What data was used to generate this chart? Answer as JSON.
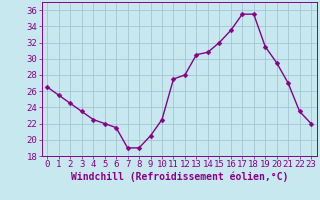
{
  "x": [
    0,
    1,
    2,
    3,
    4,
    5,
    6,
    7,
    8,
    9,
    10,
    11,
    12,
    13,
    14,
    15,
    16,
    17,
    18,
    19,
    20,
    21,
    22,
    23
  ],
  "y": [
    26.5,
    25.5,
    24.5,
    23.5,
    22.5,
    22.0,
    21.5,
    19.0,
    19.0,
    20.5,
    22.5,
    27.5,
    28.0,
    30.5,
    30.8,
    32.0,
    33.5,
    35.5,
    35.5,
    31.5,
    29.5,
    27.0,
    23.5,
    22.0
  ],
  "line_color": "#880088",
  "marker": "D",
  "marker_size": 2.5,
  "bg_color": "#c8e8f0",
  "grid_color": "#9bbfcc",
  "axis_color": "#880088",
  "tick_color": "#880088",
  "xlabel": "Windchill (Refroidissement éolien,°C)",
  "xlabel_color": "#880088",
  "ylim": [
    18,
    37
  ],
  "yticks": [
    18,
    20,
    22,
    24,
    26,
    28,
    30,
    32,
    34,
    36
  ],
  "xticks": [
    0,
    1,
    2,
    3,
    4,
    5,
    6,
    7,
    8,
    9,
    10,
    11,
    12,
    13,
    14,
    15,
    16,
    17,
    18,
    19,
    20,
    21,
    22,
    23
  ],
  "font_size": 6.5
}
